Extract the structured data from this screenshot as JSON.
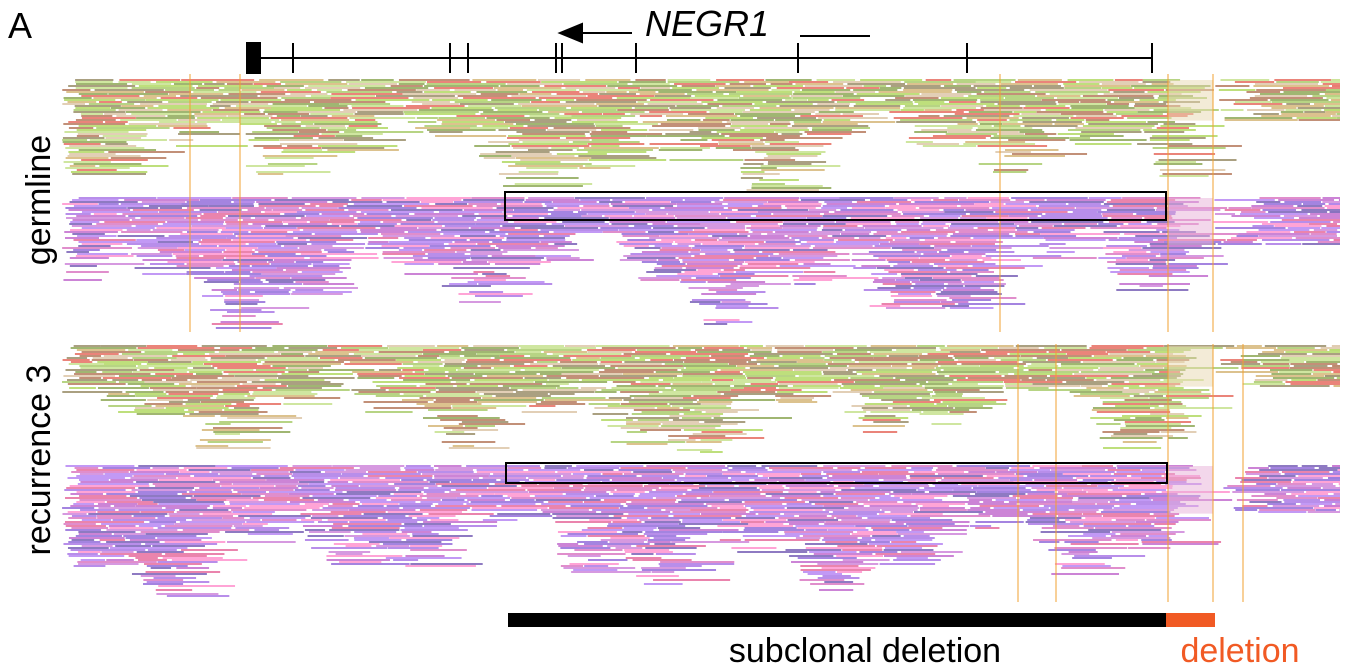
{
  "panel_label": "A",
  "gene": "NEGR1",
  "tracks": [
    {
      "label": "germline"
    },
    {
      "label": "recurrence 3"
    }
  ],
  "annotations": {
    "subclonal": "subclonal deletion",
    "deletion": "deletion"
  }
}
